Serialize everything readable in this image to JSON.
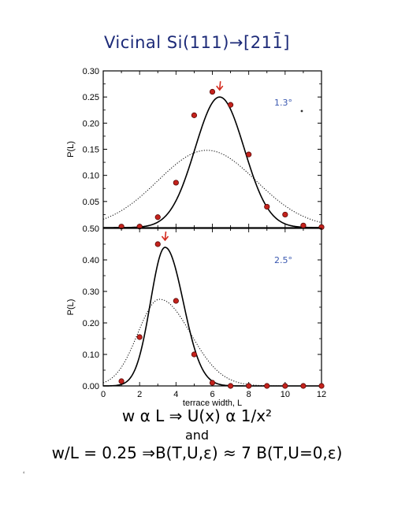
{
  "title": "Vicinal  Si(111)→[2̅1̅1]",
  "title_display": "Vicinal  Si(111)→[211̄]",
  "equations": {
    "line1": "w α L ⇒ U(x) α 1/x²",
    "line2": "and",
    "line3": "w/L = 0.25 ⇒B(T,U,ε) ≈ 7 B(T,U=0,ε)"
  },
  "stray_mark": "‘",
  "colors": {
    "title": "#1c2a78",
    "points_fill": "#c4221c",
    "points_stroke": "#5a0a08",
    "arrow": "#d42a1e",
    "annotation": "#3a58b0",
    "curve": "#000000"
  },
  "chart_data": [
    {
      "type": "scatter",
      "panel": "top",
      "annotation": "1.3°",
      "ylabel": "P(L)",
      "xlabel": "",
      "xlim": [
        0,
        12
      ],
      "ylim": [
        0,
        0.3
      ],
      "yticks": [
        0.05,
        0.1,
        0.15,
        0.2,
        0.25,
        0.3
      ],
      "ytick_labels": [
        "0.05",
        "0.10",
        "0.15",
        "0.20",
        "0.25",
        "0.30"
      ],
      "points": {
        "x": [
          1,
          2,
          3,
          4,
          5,
          6,
          7,
          8,
          9,
          10,
          11,
          12
        ],
        "y": [
          0.002,
          0.002,
          0.02,
          0.086,
          0.215,
          0.26,
          0.235,
          0.14,
          0.04,
          0.025,
          0.004,
          0.001
        ]
      },
      "arrow_at_x": 6.4,
      "solid_fit": {
        "type": "gaussian",
        "mu": 6.4,
        "sigma": 1.35,
        "peak": 0.25
      },
      "dotted_fit": {
        "type": "gaussian",
        "mu": 5.7,
        "sigma": 2.7,
        "peak": 0.148
      }
    },
    {
      "type": "scatter",
      "panel": "bottom",
      "annotation": "2.5°",
      "ylabel": "P(L)",
      "xlabel": "terrace width, L",
      "xlim": [
        0,
        12
      ],
      "ylim": [
        0,
        0.5
      ],
      "yticks": [
        0.0,
        0.1,
        0.2,
        0.3,
        0.4,
        0.5
      ],
      "ytick_labels": [
        "0.00",
        "0.10",
        "0.20",
        "0.30",
        "0.40",
        "0.50"
      ],
      "xticks": [
        0,
        2,
        4,
        6,
        8,
        10,
        12
      ],
      "xtick_labels": [
        "0",
        "2",
        "4",
        "6",
        "8",
        "10",
        "12"
      ],
      "points": {
        "x": [
          1,
          2,
          3,
          4,
          5,
          6,
          7,
          8,
          9,
          10,
          11,
          12
        ],
        "y": [
          0.015,
          0.155,
          0.45,
          0.27,
          0.1,
          0.01,
          0.0,
          0.0,
          0.0,
          0.0,
          0.0,
          0.0
        ]
      },
      "arrow_at_x": 3.4,
      "solid_fit": {
        "type": "asymmetric-gaussian",
        "mu": 3.4,
        "sigma_left": 0.8,
        "sigma_right": 1.0,
        "peak": 0.44
      },
      "dotted_fit": {
        "type": "asymmetric-gaussian",
        "mu": 3.1,
        "sigma_left": 1.2,
        "sigma_right": 1.7,
        "peak": 0.275
      }
    }
  ]
}
